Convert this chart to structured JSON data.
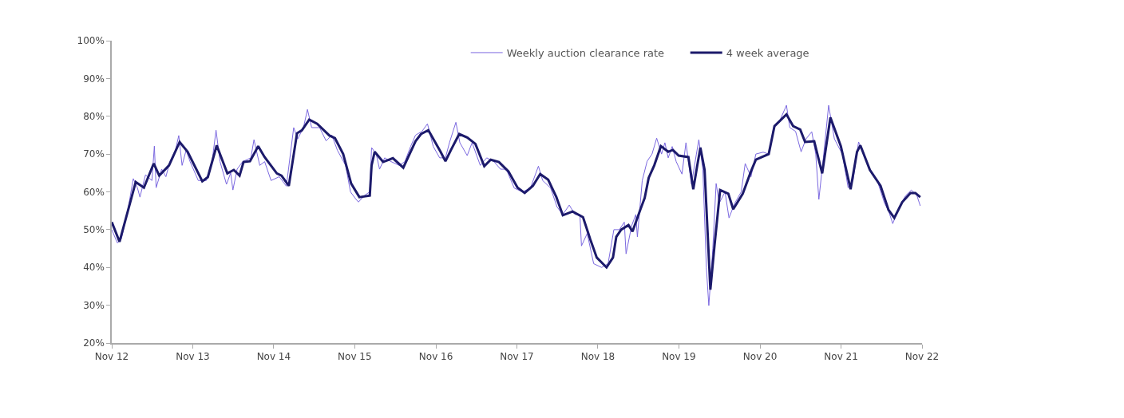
{
  "chart_data": {
    "type": "line",
    "xlim": [
      "2012-11-01",
      "2022-11-01"
    ],
    "xticks": [
      {
        "value": "2012-11-01",
        "label": "Nov 12"
      },
      {
        "value": "2013-11-01",
        "label": "Nov 13"
      },
      {
        "value": "2014-11-01",
        "label": "Nov 14"
      },
      {
        "value": "2015-11-01",
        "label": "Nov 15"
      },
      {
        "value": "2016-11-01",
        "label": "Nov 16"
      },
      {
        "value": "2017-11-01",
        "label": "Nov 17"
      },
      {
        "value": "2018-11-01",
        "label": "Nov 18"
      },
      {
        "value": "2019-11-01",
        "label": "Nov 19"
      },
      {
        "value": "2020-11-01",
        "label": "Nov 20"
      },
      {
        "value": "2021-11-01",
        "label": "Nov 21"
      },
      {
        "value": "2022-11-01",
        "label": "Nov 22"
      }
    ],
    "ylim": [
      20,
      100
    ],
    "yticks": [
      {
        "value": 20,
        "label": "20%"
      },
      {
        "value": 30,
        "label": "30%"
      },
      {
        "value": 40,
        "label": "40%"
      },
      {
        "value": 50,
        "label": "50%"
      },
      {
        "value": 60,
        "label": "60%"
      },
      {
        "value": 70,
        "label": "70%"
      },
      {
        "value": 80,
        "label": "80%"
      },
      {
        "value": 90,
        "label": "90%"
      },
      {
        "value": 100,
        "label": "100%"
      }
    ],
    "legend": "top right",
    "marker": "none",
    "series": [
      {
        "name": "Weekly auction clearance rate",
        "color": "#7b68e0",
        "x": [
          "2012-11-01",
          "2012-11-26",
          "2012-12-14",
          "2013-01-12",
          "2013-02-06",
          "2013-02-25",
          "2013-03-08",
          "2013-04-02",
          "2013-05-01",
          "2013-05-12",
          "2013-05-20",
          "2013-06-14",
          "2013-07-03",
          "2013-07-21",
          "2013-08-15",
          "2013-08-30",
          "2013-09-14",
          "2013-10-02",
          "2013-10-20",
          "2013-11-26",
          "2014-01-01",
          "2014-01-27",
          "2014-02-14",
          "2014-03-04",
          "2014-04-02",
          "2014-04-21",
          "2014-05-01",
          "2014-05-20",
          "2014-06-14",
          "2014-07-21",
          "2014-08-04",
          "2014-08-30",
          "2014-09-21",
          "2014-10-20",
          "2014-11-26",
          "2014-12-28",
          "2015-01-30",
          "2015-02-17",
          "2015-03-15",
          "2015-04-02",
          "2015-04-21",
          "2015-05-27",
          "2015-06-25",
          "2015-07-21",
          "2015-08-15",
          "2015-09-21",
          "2015-10-13",
          "2015-11-07",
          "2015-11-18",
          "2015-12-14",
          "2016-01-08",
          "2016-01-16",
          "2016-02-06",
          "2016-02-21",
          "2016-03-15",
          "2016-04-13",
          "2016-05-20",
          "2016-06-14",
          "2016-07-10",
          "2016-08-01",
          "2016-08-30",
          "2016-09-24",
          "2016-10-20",
          "2016-11-18",
          "2016-12-14",
          "2017-01-01",
          "2017-01-30",
          "2017-02-17",
          "2017-03-22",
          "2017-04-13",
          "2017-05-20",
          "2017-06-18",
          "2017-07-21",
          "2017-08-19",
          "2017-09-14",
          "2017-10-20",
          "2017-11-26",
          "2018-01-01",
          "2018-02-06",
          "2018-02-25",
          "2018-04-02",
          "2018-05-01",
          "2018-05-27",
          "2018-06-25",
          "2018-07-21",
          "2018-08-12",
          "2018-08-19",
          "2018-09-14",
          "2018-10-13",
          "2018-11-18",
          "2018-12-17",
          "2019-01-12",
          "2019-02-06",
          "2019-02-28",
          "2019-03-08",
          "2019-04-02",
          "2019-04-21",
          "2019-04-28",
          "2019-05-20",
          "2019-06-11",
          "2019-07-03",
          "2019-07-24",
          "2019-08-15",
          "2019-08-30",
          "2019-09-14",
          "2019-10-02",
          "2019-10-20",
          "2019-11-15",
          "2019-12-03",
          "2019-12-28",
          "2020-01-19",
          "2020-01-30",
          "2020-02-17",
          "2020-03-04",
          "2020-03-15",
          "2020-04-02",
          "2020-04-17",
          "2020-05-01",
          "2020-05-27",
          "2020-06-14",
          "2020-07-10",
          "2020-08-08",
          "2020-08-26",
          "2020-09-21",
          "2020-10-13",
          "2020-11-15",
          "2020-12-10",
          "2021-01-01",
          "2021-01-30",
          "2021-02-28",
          "2021-03-15",
          "2021-04-10",
          "2021-05-05",
          "2021-05-27",
          "2021-06-22",
          "2021-07-10",
          "2021-07-24",
          "2021-08-15",
          "2021-09-06",
          "2021-10-02",
          "2021-11-07",
          "2021-12-03",
          "2021-12-25",
          "2022-01-19",
          "2022-02-06",
          "2022-03-08",
          "2022-04-13",
          "2022-05-16",
          "2022-06-03",
          "2022-06-22",
          "2022-07-21",
          "2022-08-19",
          "2022-09-14",
          "2022-10-09",
          "2022-10-24"
        ],
        "values": [
          50,
          46.5,
          47.5,
          55,
          63.5,
          61,
          58.6,
          64.5,
          63,
          72.1,
          61.1,
          66,
          64,
          68,
          71,
          74.9,
          67,
          71,
          68,
          63,
          63,
          68,
          76.3,
          68,
          62,
          65,
          60.5,
          66,
          68,
          69,
          73.8,
          67,
          68,
          63,
          64,
          61.5,
          77,
          74,
          77,
          81.8,
          77,
          77,
          73.5,
          75,
          71,
          67,
          60,
          58,
          57.3,
          59,
          60,
          71.7,
          70,
          66,
          69,
          68,
          67,
          68,
          72,
          75,
          76,
          78,
          72,
          69,
          69,
          73,
          78.4,
          73,
          69.6,
          73,
          67,
          69,
          68,
          66,
          66,
          61,
          60,
          61,
          66.8,
          63,
          61,
          56,
          54,
          56.5,
          54,
          54,
          45.7,
          49,
          41,
          40,
          41,
          50,
          50,
          52,
          43.6,
          51,
          54,
          48.1,
          63,
          68.1,
          70,
          74.2,
          70,
          73,
          69,
          72,
          68,
          64.7,
          73,
          62,
          70,
          73.8,
          66,
          40,
          29.9,
          45,
          62.2,
          57,
          60,
          53.1,
          57,
          60,
          67.5,
          64,
          70,
          70.5,
          70,
          77,
          79,
          82.9,
          77,
          76,
          70.6,
          74,
          75.9,
          70,
          58,
          70,
          82.9,
          74,
          70,
          61.1,
          63,
          73.2,
          71,
          66,
          63,
          57,
          55,
          51.6,
          56,
          59,
          60.5,
          59,
          56.3
        ]
      },
      {
        "name": "4 week average",
        "color": "#1c1a6b",
        "x": [
          "2012-11-01",
          "2012-12-06",
          "2013-01-12",
          "2013-02-17",
          "2013-03-26",
          "2013-05-09",
          "2013-06-03",
          "2013-07-17",
          "2013-09-03",
          "2013-10-09",
          "2013-12-14",
          "2014-01-08",
          "2014-02-17",
          "2014-04-06",
          "2014-05-05",
          "2014-05-31",
          "2014-06-18",
          "2014-07-17",
          "2014-08-23",
          "2014-09-21",
          "2014-11-15",
          "2014-12-06",
          "2015-01-08",
          "2015-02-14",
          "2015-03-08",
          "2015-04-10",
          "2015-05-16",
          "2015-07-10",
          "2015-08-04",
          "2015-09-10",
          "2015-10-16",
          "2015-11-22",
          "2016-01-08",
          "2016-01-16",
          "2016-01-30",
          "2016-03-08",
          "2016-04-21",
          "2016-06-07",
          "2016-08-01",
          "2016-08-26",
          "2016-09-28",
          "2016-11-22",
          "2016-12-14",
          "2017-01-08",
          "2017-02-14",
          "2017-03-22",
          "2017-04-28",
          "2017-06-07",
          "2017-07-06",
          "2017-08-12",
          "2017-09-24",
          "2017-11-04",
          "2017-12-06",
          "2018-01-12",
          "2018-02-14",
          "2018-03-22",
          "2018-04-28",
          "2018-05-27",
          "2018-07-10",
          "2018-08-26",
          "2018-09-28",
          "2018-10-27",
          "2018-12-10",
          "2019-01-08",
          "2019-01-23",
          "2019-02-14",
          "2019-03-19",
          "2019-04-06",
          "2019-05-12",
          "2019-05-31",
          "2019-06-18",
          "2019-07-13",
          "2019-08-12",
          "2019-09-14",
          "2019-10-05",
          "2019-10-31",
          "2019-12-14",
          "2020-01-05",
          "2020-01-23",
          "2020-02-06",
          "2020-02-25",
          "2020-03-22",
          "2020-04-10",
          "2020-05-05",
          "2020-06-11",
          "2020-07-03",
          "2020-08-15",
          "2020-09-21",
          "2020-10-13",
          "2020-12-10",
          "2021-01-05",
          "2021-02-28",
          "2021-03-30",
          "2021-05-01",
          "2021-05-23",
          "2021-07-03",
          "2021-08-08",
          "2021-09-14",
          "2021-10-31",
          "2021-12-14",
          "2022-01-12",
          "2022-01-27",
          "2022-03-11",
          "2022-04-28",
          "2022-06-03",
          "2022-06-29",
          "2022-08-04",
          "2022-09-10",
          "2022-10-02",
          "2022-10-24"
        ],
        "values": [
          52,
          46.8,
          54.8,
          62.6,
          61.1,
          67.5,
          64.3,
          67,
          73.2,
          70.6,
          62.8,
          63.9,
          72.3,
          64.9,
          65.8,
          64.3,
          67.9,
          68.1,
          72.1,
          69.2,
          64.9,
          64.3,
          61.6,
          75.5,
          76.3,
          79.1,
          78,
          74.9,
          74.2,
          70,
          62.2,
          58.6,
          59,
          67,
          70.6,
          67.9,
          68.9,
          66.4,
          73.4,
          75.3,
          76.3,
          70.6,
          68.1,
          71.1,
          75.3,
          74.4,
          72.7,
          66.8,
          68.5,
          67.9,
          65.4,
          61.1,
          59.7,
          61.6,
          64.7,
          63.2,
          58.6,
          53.8,
          54.8,
          53.3,
          47.4,
          42.6,
          40,
          42.6,
          48.1,
          50,
          51.2,
          49.5,
          55.4,
          58.4,
          63.7,
          67,
          72.1,
          70.6,
          71.1,
          69.6,
          69.2,
          60.7,
          67,
          71.7,
          65.8,
          34.1,
          46,
          60.5,
          59.5,
          55.4,
          59.5,
          65.4,
          68.5,
          70,
          77.4,
          80.5,
          77.4,
          76.5,
          73.2,
          73.4,
          64.9,
          79.7,
          72.1,
          60.7,
          70.6,
          72.3,
          65.8,
          61.6,
          55.2,
          53.1,
          57.3,
          59.7,
          59.7,
          58.6
        ]
      }
    ]
  }
}
